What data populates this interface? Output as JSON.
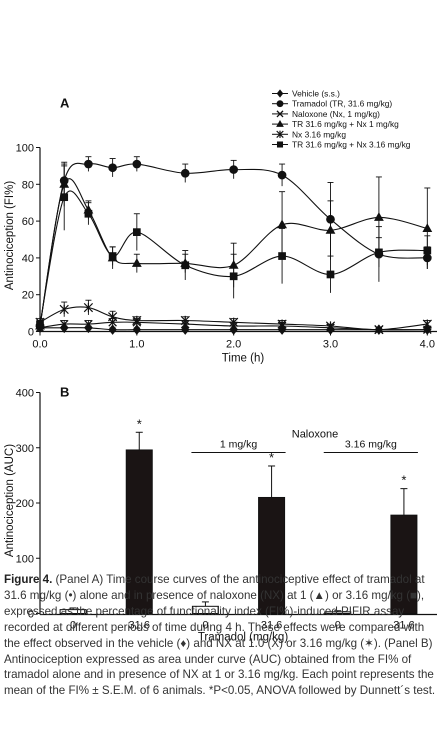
{
  "chart_data": [
    {
      "type": "line",
      "panel_label": "A",
      "xlabel": "Time (h)",
      "ylabel": "Antinociception (FI%)",
      "xlim": [
        0,
        4.1
      ],
      "ylim": [
        0,
        100
      ],
      "x_ticks": [
        "0.0",
        "1.0",
        "2.0",
        "3.0",
        "4.0"
      ],
      "y_ticks": [
        "0",
        "20",
        "40",
        "60",
        "80",
        "100"
      ],
      "legend_position": "top-right",
      "series": [
        {
          "name": "Vehicle (s.s.)",
          "marker": "diamond",
          "x": [
            0,
            0.25,
            0.5,
            0.75,
            1,
            1.5,
            2,
            2.5,
            3,
            3.5,
            4
          ],
          "y": [
            2,
            2,
            2,
            1,
            1,
            1,
            1,
            1,
            1,
            1,
            1
          ],
          "err": [
            1,
            1,
            1,
            1,
            1,
            1,
            1,
            1,
            1,
            1,
            1
          ]
        },
        {
          "name": "Tramadol (TR, 31.6 mg/kg)",
          "marker": "circle",
          "x": [
            0,
            0.25,
            0.5,
            0.75,
            1,
            1.5,
            2,
            2.5,
            3,
            3.5,
            4
          ],
          "y": [
            3,
            82,
            91,
            89,
            91,
            86,
            88,
            85,
            61,
            42,
            40
          ],
          "err": [
            2,
            8,
            4,
            5,
            4,
            5,
            5,
            6,
            20,
            15,
            6
          ]
        },
        {
          "name": "Naloxone (Nx, 1 mg/kg)",
          "marker": "x",
          "x": [
            0,
            0.25,
            0.5,
            0.75,
            1,
            1.5,
            2,
            2.5,
            3,
            3.5,
            4
          ],
          "y": [
            2,
            4,
            4,
            5,
            5,
            4,
            3,
            3,
            2,
            1,
            1
          ],
          "err": [
            2,
            2,
            2,
            2,
            2,
            2,
            2,
            2,
            1,
            1,
            1
          ]
        },
        {
          "name": "TR 31.6 mg/kg + Nx 1 mg/kg",
          "marker": "triangle",
          "x": [
            0,
            0.25,
            0.5,
            0.75,
            1,
            1.5,
            2,
            2.5,
            3,
            3.5,
            4
          ],
          "y": [
            3,
            80,
            66,
            40,
            37,
            37,
            36,
            58,
            55,
            62,
            56
          ],
          "err": [
            2,
            12,
            5,
            6,
            5,
            5,
            12,
            18,
            16,
            22,
            22
          ]
        },
        {
          "name": "Nx 3.16 mg/kg",
          "marker": "asterisk",
          "x": [
            0,
            0.25,
            0.5,
            0.75,
            1,
            1.5,
            2,
            2.5,
            3,
            3.5,
            4
          ],
          "y": [
            5,
            12,
            13,
            8,
            6,
            6,
            5,
            4,
            3,
            1,
            4
          ],
          "err": [
            2,
            4,
            4,
            3,
            2,
            2,
            2,
            2,
            1,
            1,
            2
          ]
        },
        {
          "name": "TR 31.6 mg/kg + Nx 3.16 mg/kg",
          "marker": "square",
          "x": [
            0,
            0.25,
            0.5,
            0.75,
            1,
            1.5,
            2,
            2.5,
            3,
            3.5,
            4
          ],
          "y": [
            4,
            73,
            64,
            41,
            54,
            36,
            30,
            41,
            31,
            43,
            44
          ],
          "err": [
            2,
            18,
            6,
            5,
            10,
            8,
            12,
            15,
            10,
            8,
            8
          ]
        }
      ]
    },
    {
      "type": "bar",
      "panel_label": "B",
      "xlabel": "Tramadol (mg/kg)",
      "ylabel": "Antinociception (AUC)",
      "ylim": [
        0,
        400
      ],
      "y_ticks": [
        "0",
        "100",
        "200",
        "300",
        "400"
      ],
      "categories": [
        "0",
        "31.6",
        "0",
        "31.6",
        "0",
        "31.6"
      ],
      "values": [
        7,
        296,
        13,
        210,
        3,
        178
      ],
      "errors": [
        3,
        32,
        8,
        57,
        2,
        48
      ],
      "fill": [
        "white",
        "black",
        "white",
        "black",
        "white",
        "black"
      ],
      "significance": [
        "",
        "*",
        "",
        "*",
        "",
        "*"
      ],
      "group_header": "Naloxone",
      "group_labels": [
        "1 mg/kg",
        "3.16 mg/kg"
      ]
    }
  ],
  "caption": {
    "label": "Figure 4.",
    "text": " (Panel A) Time course curves of the antinociceptive effect of tramadol at 31.6 mg/kg (•) alone and in presence of naloxone (NX) at 1 (▲) or 3.16 mg/kg (■), expressed as the percentage of functionality index (FI%)-induced PIFIR assay recorded at different periods of time during 4 h. These effects were compared with the effect observed in the vehicle (♦) and NX at 1.0 (X) or 3.16 mg/kg (✶). (Panel B) Antinociception expressed as area under curve (AUC) obtained from the FI% of tramadol alone and in presence of NX at 1 or 3.16 mg/kg. Each point represents the mean of the FI% ± S.E.M. of 6 animals. *P<0.05, ANOVA followed by Dunnett´s test."
  }
}
